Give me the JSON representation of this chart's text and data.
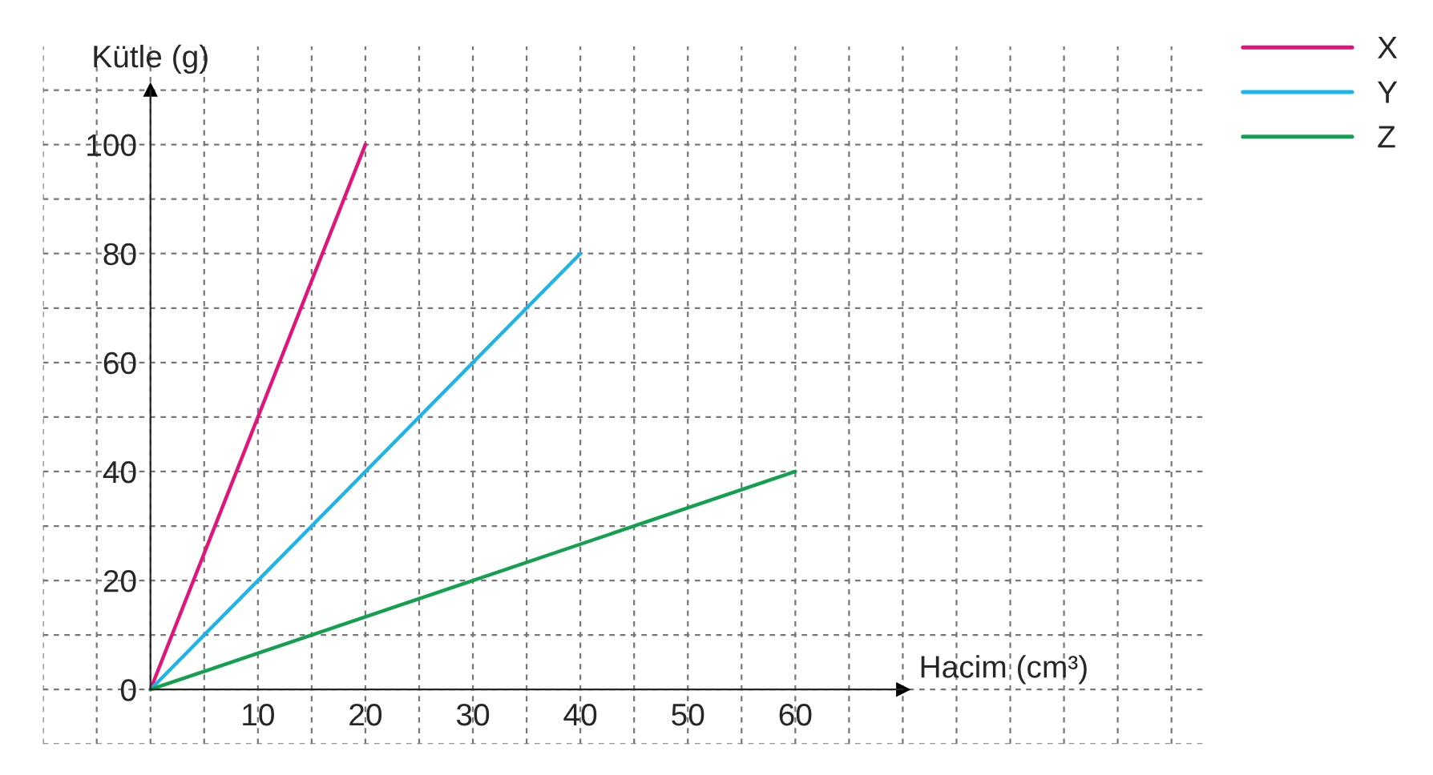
{
  "chart_data": {
    "type": "line",
    "xlabel": "Hacim (cm³)",
    "ylabel": "Kütle (g)",
    "series": [
      {
        "name": "X",
        "color": "#e0157a",
        "x": [
          0,
          20
        ],
        "values": [
          0,
          100
        ]
      },
      {
        "name": "Y",
        "color": "#1eb4e8",
        "x": [
          0,
          40
        ],
        "values": [
          0,
          80
        ]
      },
      {
        "name": "Z",
        "color": "#14a050",
        "x": [
          0,
          60
        ],
        "values": [
          0,
          40
        ]
      }
    ],
    "xlim": [
      -10,
      98
    ],
    "ylim": [
      -10,
      118
    ],
    "xticks": [
      10,
      20,
      30,
      40,
      50,
      60
    ],
    "yticks": [
      0,
      20,
      40,
      60,
      80,
      100
    ],
    "grid": true,
    "legend": "top right",
    "line_style": "solid",
    "marker": "none"
  }
}
